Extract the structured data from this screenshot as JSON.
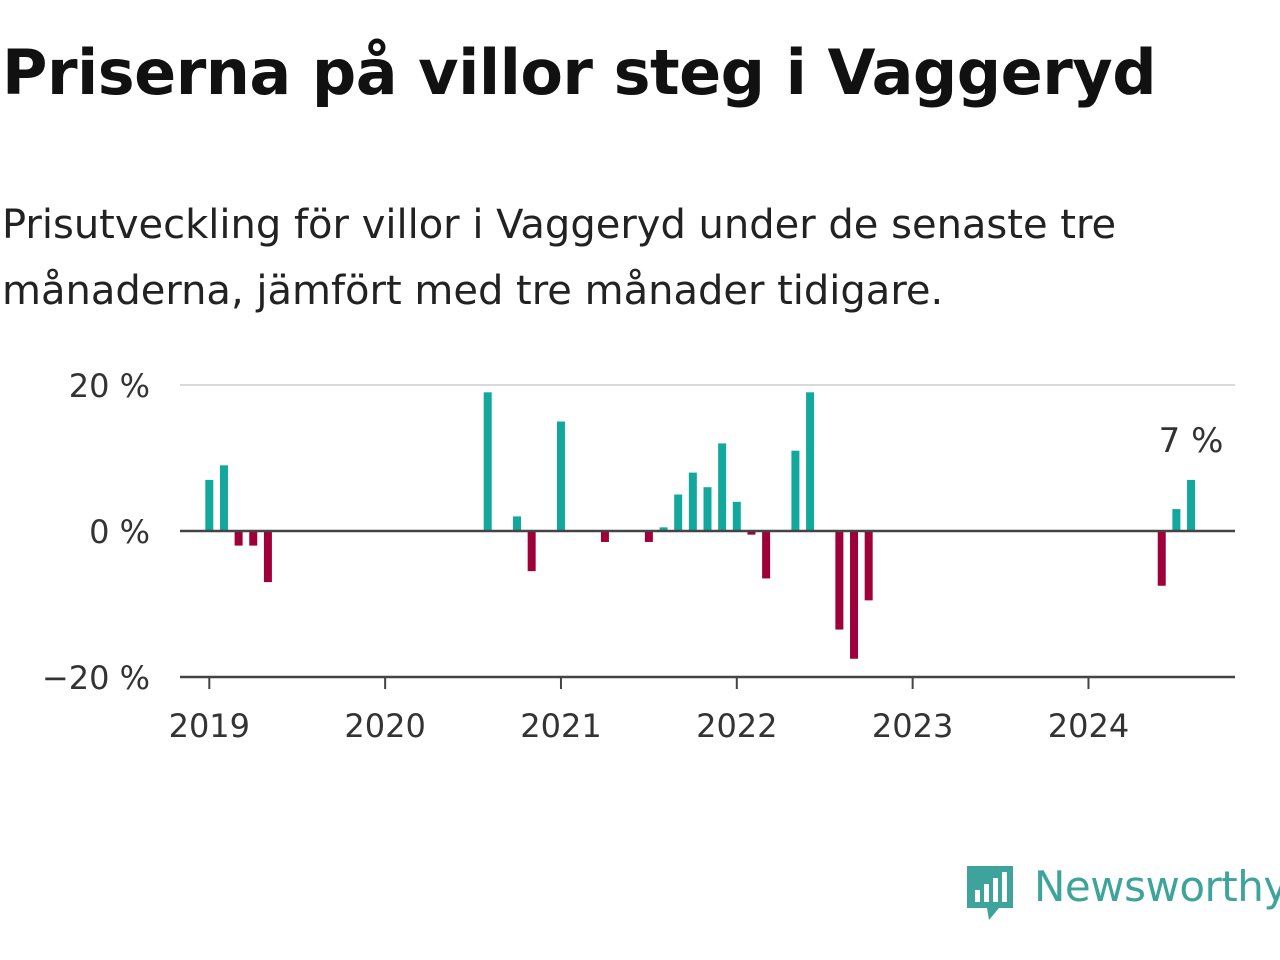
{
  "title": "Priserna på villor steg i Vaggeryd",
  "subtitle": "Prisutveckling för villor i Vaggeryd under de senaste tre månaderna, jämfört med tre månader tidigare.",
  "brand": {
    "name": "Newsworthy",
    "icon": "newsworthy-chart-bubble-icon"
  },
  "colors": {
    "positive": "#13a89e",
    "negative": "#a0003a",
    "grid": "#d9d9d9",
    "axis": "#444444",
    "brand": "#3ea39b"
  },
  "chart_data": {
    "type": "bar",
    "title": "Priserna på villor steg i Vaggeryd",
    "xlabel": "",
    "ylabel": "",
    "ylim": [
      -20,
      20
    ],
    "yticks": [
      {
        "value": 20,
        "label": "20 %"
      },
      {
        "value": 0,
        "label": "0 %"
      },
      {
        "value": -20,
        "label": "−20 %"
      }
    ],
    "xlim": [
      "2018-11",
      "2024-11"
    ],
    "xticks": [
      "2019",
      "2020",
      "2021",
      "2022",
      "2023",
      "2024"
    ],
    "grid": true,
    "x": [
      "2019-01",
      "2019-02",
      "2019-03",
      "2019-04",
      "2019-05",
      "2020-08",
      "2020-10",
      "2020-11",
      "2021-01",
      "2021-04",
      "2021-07",
      "2021-08",
      "2021-09",
      "2021-10",
      "2021-11",
      "2021-12",
      "2022-01",
      "2022-02",
      "2022-03",
      "2022-05",
      "2022-06",
      "2022-08",
      "2022-09",
      "2022-10",
      "2024-06",
      "2024-07",
      "2024-08"
    ],
    "values": [
      7,
      9,
      -2,
      -2,
      -7,
      19,
      2,
      -5.5,
      15,
      -1.5,
      -1.5,
      0.5,
      5,
      8,
      6,
      12,
      4,
      -0.5,
      -6.5,
      11,
      19,
      -13.5,
      -17.5,
      -9.5,
      -7.5,
      3,
      7
    ],
    "annotations": [
      {
        "x": "2024-08",
        "label": "7 %"
      }
    ]
  }
}
